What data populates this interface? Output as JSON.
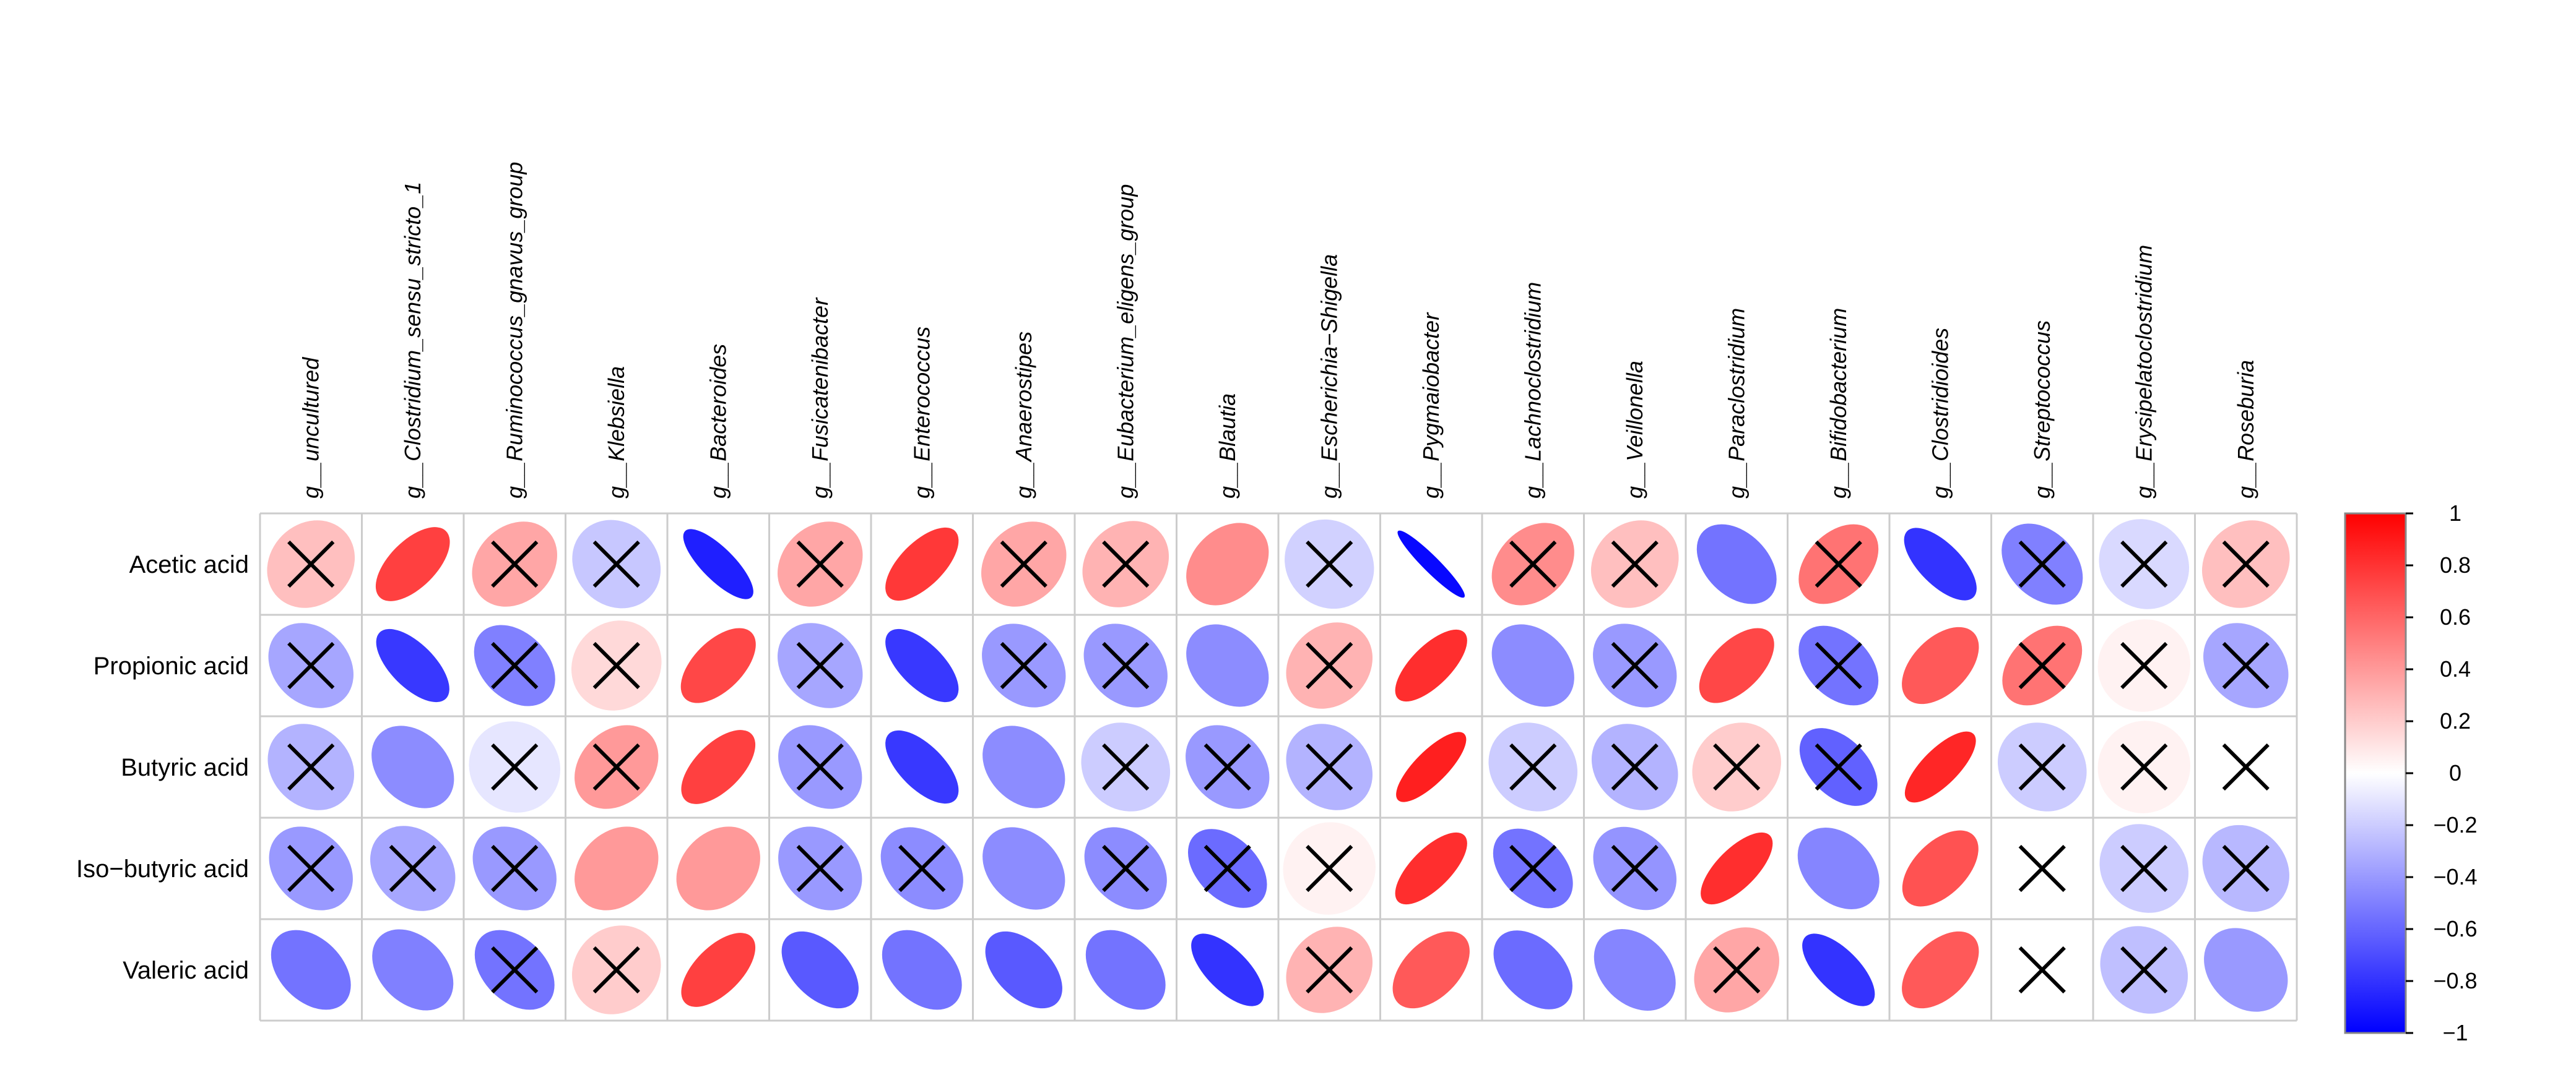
{
  "chart_data": {
    "type": "heatmap",
    "title": "",
    "columns": [
      "g__uncultured",
      "g__Clostridium_sensu_stricto_1",
      "g__Ruminococcus_gnavus_group",
      "g__Klebsiella",
      "g__Bacteroides",
      "g__Fusicatenibacter",
      "g__Enterococcus",
      "g__Anaerostipes",
      "g__Eubacterium_eligens_group",
      "g__Blautia",
      "g__Escherichia−Shigella",
      "g__Pygmaiobacter",
      "g__Lachnoclostridium",
      "g__Veillonella",
      "g__Paraclostridium",
      "g__Bifidobacterium",
      "g__Clostridioides",
      "g__Streptococcus",
      "g__Erysipelatoclostridium",
      "g__Roseburia"
    ],
    "rows": [
      "Acetic acid",
      "Propionic acid",
      "Butyric acid",
      "Iso−butyric acid",
      "Valeric acid"
    ],
    "values": [
      [
        0.25,
        0.75,
        0.35,
        -0.22,
        -0.88,
        0.35,
        0.78,
        0.35,
        0.3,
        0.45,
        -0.18,
        -0.97,
        0.45,
        0.25,
        -0.55,
        0.55,
        -0.8,
        -0.5,
        -0.15,
        0.25
      ],
      [
        -0.35,
        -0.78,
        -0.5,
        0.15,
        0.72,
        -0.35,
        -0.78,
        -0.4,
        -0.4,
        -0.45,
        0.3,
        0.82,
        -0.45,
        -0.4,
        0.72,
        -0.55,
        0.65,
        0.55,
        0.05,
        -0.35
      ],
      [
        -0.3,
        -0.45,
        -0.1,
        0.4,
        0.75,
        -0.4,
        -0.78,
        -0.45,
        -0.2,
        -0.4,
        -0.3,
        0.88,
        -0.2,
        -0.3,
        0.2,
        -0.62,
        0.85,
        -0.2,
        0.05,
        0.0
      ],
      [
        -0.4,
        -0.35,
        -0.4,
        0.4,
        0.4,
        -0.4,
        -0.45,
        -0.45,
        -0.45,
        -0.58,
        0.05,
        0.82,
        -0.55,
        -0.42,
        0.82,
        -0.48,
        0.68,
        0.0,
        -0.2,
        -0.28
      ],
      [
        -0.55,
        -0.5,
        -0.55,
        0.2,
        0.75,
        -0.65,
        -0.55,
        -0.65,
        -0.55,
        -0.8,
        0.3,
        0.65,
        -0.58,
        -0.48,
        0.35,
        -0.8,
        0.65,
        0.0,
        -0.25,
        -0.4
      ]
    ],
    "not_significant": [
      [
        true,
        false,
        true,
        true,
        false,
        true,
        false,
        true,
        true,
        false,
        true,
        false,
        true,
        true,
        false,
        true,
        false,
        true,
        true,
        true
      ],
      [
        true,
        false,
        true,
        true,
        false,
        true,
        false,
        true,
        true,
        false,
        true,
        false,
        false,
        true,
        false,
        true,
        false,
        true,
        true,
        true
      ],
      [
        true,
        false,
        true,
        true,
        false,
        true,
        false,
        false,
        true,
        true,
        true,
        false,
        true,
        true,
        true,
        true,
        false,
        true,
        true,
        true
      ],
      [
        true,
        true,
        true,
        false,
        false,
        true,
        true,
        false,
        true,
        true,
        true,
        false,
        true,
        true,
        false,
        false,
        false,
        true,
        true,
        true
      ],
      [
        false,
        false,
        true,
        true,
        false,
        false,
        false,
        false,
        false,
        false,
        true,
        false,
        false,
        false,
        true,
        false,
        false,
        true,
        true,
        false
      ]
    ],
    "colorbar": {
      "range": [
        -1,
        1
      ],
      "ticks": [
        "1",
        "0.8",
        "0.6",
        "0.4",
        "0.2",
        "0",
        "−0.2",
        "−0.4",
        "−0.6",
        "−0.8",
        "−1"
      ],
      "colors": {
        "negative": "#0000ff",
        "zero": "#ffffff",
        "positive": "#ff0000"
      }
    },
    "grid": true,
    "legend_position": "right",
    "mark_symbol": "✕"
  }
}
